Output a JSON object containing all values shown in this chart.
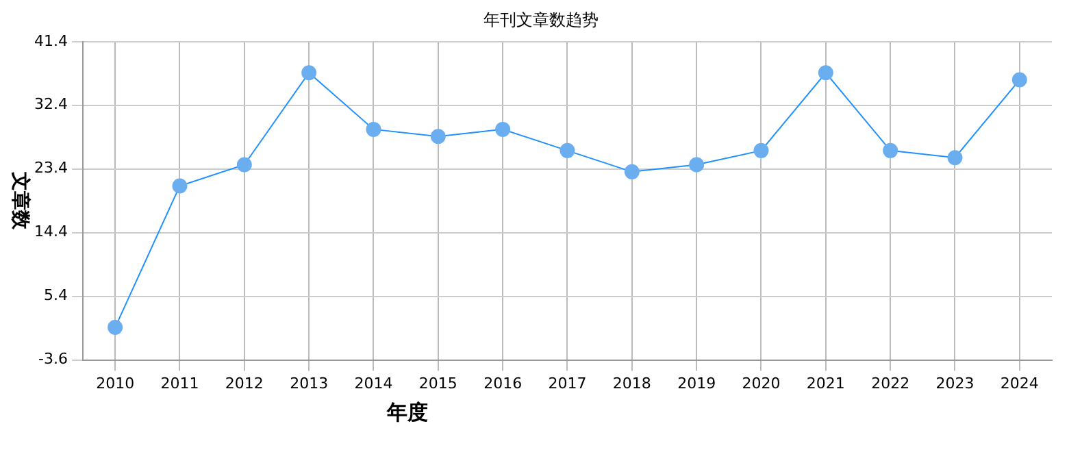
{
  "chart_data": {
    "type": "line",
    "title": "年刊文章数趋势",
    "xlabel": "年度",
    "ylabel": "文章数",
    "categories": [
      "2010",
      "2011",
      "2012",
      "2013",
      "2014",
      "2015",
      "2016",
      "2017",
      "2018",
      "2019",
      "2020",
      "2021",
      "2022",
      "2023",
      "2024"
    ],
    "series": [
      {
        "color": "#1e90ff",
        "values": [
          1,
          21,
          24,
          37,
          29,
          28,
          29,
          26,
          23,
          24,
          26,
          37,
          26,
          25,
          36
        ]
      }
    ],
    "ylim": [
      -3.6,
      41.4
    ],
    "yticks": [
      -3.6,
      5.4,
      14.4,
      23.4,
      32.4,
      41.4
    ],
    "grid": true,
    "marker": "circle",
    "legend": false
  }
}
